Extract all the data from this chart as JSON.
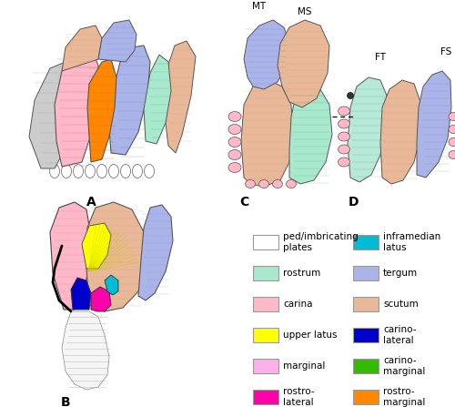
{
  "figure_width": 5.0,
  "figure_height": 4.47,
  "dpi": 100,
  "background": "#ffffff",
  "legend_items_left": [
    {
      "label": "ped/imbricating\nplates",
      "color": "#ffffff",
      "edgecolor": "#999999"
    },
    {
      "label": "rostrum",
      "color": "#a8e8cc",
      "edgecolor": "#999999"
    },
    {
      "label": "carina",
      "color": "#ffb8c8",
      "edgecolor": "#999999"
    },
    {
      "label": "upper latus",
      "color": "#ffff00",
      "edgecolor": "#999999"
    },
    {
      "label": "marginal",
      "color": "#ffb0e8",
      "edgecolor": "#999999"
    },
    {
      "label": "rostro-\nlateral",
      "color": "#ff00aa",
      "edgecolor": "#999999"
    }
  ],
  "legend_items_right": [
    {
      "label": "inframedian\nlatus",
      "color": "#00bcd4",
      "edgecolor": "#999999"
    },
    {
      "label": "tergum",
      "color": "#aab4e8",
      "edgecolor": "#999999"
    },
    {
      "label": "scutum",
      "color": "#e8b898",
      "edgecolor": "#999999"
    },
    {
      "label": "carino-\nlateral",
      "color": "#0000cc",
      "edgecolor": "#999999"
    },
    {
      "label": "carino-\nmarginal",
      "color": "#33bb00",
      "edgecolor": "#999999"
    },
    {
      "label": "rostro-\nmarginal",
      "color": "#ff8800",
      "edgecolor": "#999999"
    }
  ],
  "colors": {
    "carina_pink": "#ffb8c8",
    "scutum_peach": "#e8b898",
    "tergum_blue": "#aab4e8",
    "rostrum_mint": "#a8e8cc",
    "carino_lateral_blue": "#0000cc",
    "rostro_lateral_magenta": "#ff00aa",
    "upper_latus_yellow": "#ffff00",
    "marginal_pink": "#ffb0e8",
    "carino_marginal_green": "#33bb00",
    "rostro_marginal_orange": "#ff8800",
    "inframedian_cyan": "#00bcd4",
    "white": "#ffffff",
    "gray_plate": "#cccccc",
    "dark_gray": "#888888",
    "outline": "#555555",
    "dark_outline": "#333333",
    "line_color": "#666666"
  }
}
